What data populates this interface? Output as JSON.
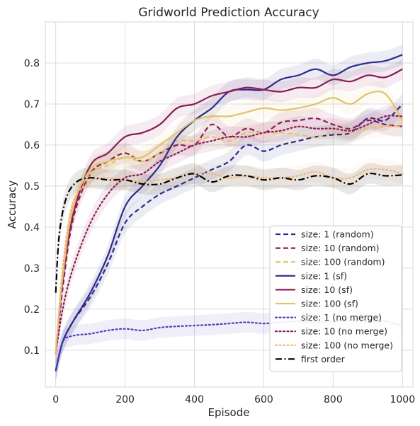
{
  "chart_data": {
    "type": "line",
    "title": "Gridworld Prediction Accuracy",
    "xlabel": "Episode",
    "ylabel": "Accuracy",
    "xlim": [
      -30,
      1030
    ],
    "ylim": [
      0.01,
      0.9
    ],
    "xticks": [
      0,
      200,
      400,
      600,
      800,
      1000
    ],
    "yticks": [
      0.1,
      0.2,
      0.3,
      0.4,
      0.5,
      0.6,
      0.7,
      0.8
    ],
    "grid": true,
    "legend_position": "lower-right",
    "series": [
      {
        "name": "size: 1 (random)",
        "color": "#2e2a8c",
        "dash": "dashed",
        "width": 2.2,
        "x": [
          0,
          20,
          50,
          100,
          150,
          200,
          250,
          300,
          350,
          400,
          450,
          500,
          550,
          600,
          650,
          700,
          750,
          800,
          850,
          900,
          950,
          1000
        ],
        "y": [
          0.05,
          0.12,
          0.17,
          0.23,
          0.31,
          0.41,
          0.45,
          0.48,
          0.5,
          0.52,
          0.54,
          0.56,
          0.6,
          0.585,
          0.6,
          0.61,
          0.62,
          0.625,
          0.63,
          0.665,
          0.66,
          0.7
        ]
      },
      {
        "name": "size: 10 (random)",
        "color": "#8c1c54",
        "dash": "dashed",
        "width": 2.2,
        "x": [
          0,
          20,
          50,
          100,
          150,
          200,
          250,
          300,
          350,
          400,
          450,
          500,
          550,
          600,
          650,
          700,
          750,
          800,
          850,
          900,
          950,
          1000
        ],
        "y": [
          0.09,
          0.25,
          0.42,
          0.53,
          0.56,
          0.58,
          0.56,
          0.58,
          0.6,
          0.6,
          0.65,
          0.62,
          0.64,
          0.63,
          0.655,
          0.66,
          0.665,
          0.65,
          0.64,
          0.66,
          0.65,
          0.645
        ]
      },
      {
        "name": "size: 100 (random)",
        "color": "#e0c46a",
        "dash": "dashed",
        "width": 2.2,
        "x": [
          0,
          20,
          50,
          100,
          150,
          200,
          250,
          300,
          350,
          400,
          450,
          500,
          550,
          600,
          650,
          700,
          750,
          800,
          850,
          900,
          950,
          1000
        ],
        "y": [
          0.09,
          0.28,
          0.45,
          0.53,
          0.55,
          0.57,
          0.56,
          0.58,
          0.61,
          0.61,
          0.62,
          0.61,
          0.63,
          0.63,
          0.63,
          0.625,
          0.62,
          0.63,
          0.63,
          0.64,
          0.645,
          0.645
        ]
      },
      {
        "name": "size: 1 (sf)",
        "color": "#2e2a8c",
        "dash": "solid",
        "width": 2.2,
        "x": [
          0,
          20,
          50,
          100,
          150,
          200,
          250,
          300,
          350,
          400,
          450,
          500,
          550,
          600,
          650,
          700,
          750,
          800,
          850,
          900,
          950,
          1000
        ],
        "y": [
          0.05,
          0.12,
          0.17,
          0.24,
          0.33,
          0.45,
          0.5,
          0.55,
          0.62,
          0.66,
          0.69,
          0.73,
          0.735,
          0.735,
          0.76,
          0.77,
          0.785,
          0.77,
          0.79,
          0.8,
          0.805,
          0.82
        ]
      },
      {
        "name": "size: 10 (sf)",
        "color": "#8c1c54",
        "dash": "solid",
        "width": 2.2,
        "x": [
          0,
          20,
          50,
          100,
          150,
          200,
          250,
          300,
          350,
          400,
          450,
          500,
          550,
          600,
          650,
          700,
          750,
          800,
          850,
          900,
          950,
          1000
        ],
        "y": [
          0.09,
          0.27,
          0.43,
          0.55,
          0.58,
          0.62,
          0.63,
          0.65,
          0.69,
          0.7,
          0.72,
          0.73,
          0.74,
          0.735,
          0.73,
          0.74,
          0.74,
          0.76,
          0.755,
          0.77,
          0.765,
          0.785
        ]
      },
      {
        "name": "size: 100 (sf)",
        "color": "#e0c46a",
        "dash": "solid",
        "width": 2.2,
        "x": [
          0,
          20,
          50,
          100,
          150,
          200,
          250,
          300,
          350,
          400,
          450,
          500,
          550,
          600,
          650,
          700,
          750,
          800,
          850,
          900,
          950,
          1000
        ],
        "y": [
          0.09,
          0.28,
          0.45,
          0.54,
          0.56,
          0.57,
          0.57,
          0.6,
          0.63,
          0.66,
          0.67,
          0.67,
          0.68,
          0.69,
          0.685,
          0.69,
          0.7,
          0.715,
          0.7,
          0.725,
          0.725,
          0.66
        ]
      },
      {
        "name": "size: 1 (no merge)",
        "color": "#4a3fb8",
        "dash": "dotted",
        "width": 2.2,
        "x": [
          0,
          20,
          50,
          100,
          150,
          200,
          250,
          300,
          350,
          400,
          450,
          500,
          550,
          600,
          650,
          700,
          750,
          800,
          850,
          900,
          950,
          1000
        ],
        "y": [
          0.05,
          0.12,
          0.135,
          0.14,
          0.148,
          0.152,
          0.148,
          0.155,
          0.158,
          0.16,
          0.162,
          0.165,
          0.168,
          0.165,
          0.168,
          0.17,
          0.168,
          0.17,
          0.172,
          0.17,
          0.17,
          0.16
        ]
      },
      {
        "name": "size: 10 (no merge)",
        "color": "#8c1c54",
        "dash": "dotted",
        "width": 2.2,
        "x": [
          0,
          20,
          50,
          100,
          150,
          200,
          250,
          300,
          350,
          400,
          450,
          500,
          550,
          600,
          650,
          700,
          750,
          800,
          850,
          900,
          950,
          1000
        ],
        "y": [
          0.09,
          0.2,
          0.3,
          0.41,
          0.48,
          0.52,
          0.53,
          0.56,
          0.58,
          0.6,
          0.61,
          0.62,
          0.62,
          0.63,
          0.635,
          0.645,
          0.64,
          0.64,
          0.635,
          0.65,
          0.67,
          0.67
        ]
      },
      {
        "name": "size: 100 (no merge)",
        "color": "#f2b77a",
        "dash": "dotted",
        "width": 2.2,
        "x": [
          0,
          20,
          50,
          100,
          150,
          200,
          250,
          300,
          350,
          400,
          450,
          500,
          550,
          600,
          650,
          700,
          750,
          800,
          850,
          900,
          950,
          1000
        ],
        "y": [
          0.09,
          0.3,
          0.46,
          0.51,
          0.52,
          0.515,
          0.51,
          0.515,
          0.52,
          0.53,
          0.53,
          0.52,
          0.525,
          0.52,
          0.52,
          0.525,
          0.535,
          0.52,
          0.52,
          0.54,
          0.54,
          0.53
        ]
      },
      {
        "name": "first order",
        "color": "#000000",
        "dash": "dashdot",
        "width": 2.2,
        "x": [
          0,
          10,
          30,
          60,
          100,
          150,
          200,
          250,
          300,
          350,
          400,
          450,
          500,
          550,
          600,
          650,
          700,
          750,
          800,
          850,
          900,
          950,
          1000
        ],
        "y": [
          0.24,
          0.38,
          0.47,
          0.51,
          0.52,
          0.515,
          0.515,
          0.505,
          0.505,
          0.52,
          0.53,
          0.51,
          0.525,
          0.525,
          0.515,
          0.52,
          0.515,
          0.525,
          0.52,
          0.505,
          0.53,
          0.525,
          0.527
        ]
      }
    ]
  }
}
